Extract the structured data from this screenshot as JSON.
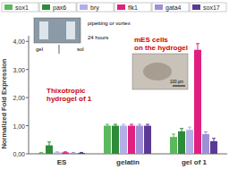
{
  "chart_data": {
    "type": "bar",
    "y_label": "Normalized Fold Expression",
    "categories": [
      "ES",
      "gelatin",
      "gel of 1"
    ],
    "series": [
      {
        "name": "sox1",
        "color": "#5cb85c",
        "values": [
          0.03,
          1.0,
          0.6
        ],
        "errors": [
          0.02,
          0.05,
          0.1
        ]
      },
      {
        "name": "pax6",
        "color": "#2e8b3a",
        "values": [
          0.3,
          1.0,
          0.8
        ],
        "errors": [
          0.12,
          0.05,
          0.1
        ]
      },
      {
        "name": "bry",
        "color": "#b3aee6",
        "values": [
          0.05,
          1.0,
          0.85
        ],
        "errors": [
          0.02,
          0.05,
          0.1
        ]
      },
      {
        "name": "flk1",
        "color": "#e0207f",
        "values": [
          0.05,
          1.0,
          3.7
        ],
        "errors": [
          0.02,
          0.05,
          0.22
        ]
      },
      {
        "name": "gata4",
        "color": "#9f8fd6",
        "values": [
          0.03,
          1.0,
          0.7
        ],
        "errors": [
          0.02,
          0.05,
          0.08
        ]
      },
      {
        "name": "sox17",
        "color": "#5b3a96",
        "values": [
          0.03,
          1.0,
          0.45
        ],
        "errors": [
          0.02,
          0.05,
          0.1
        ]
      }
    ],
    "ylim": [
      0,
      4.2
    ],
    "yticks": [
      {
        "value": 0,
        "label": "0,00"
      },
      {
        "value": 1,
        "label": "1,00"
      },
      {
        "value": 2,
        "label": "2,00"
      },
      {
        "value": 3,
        "label": "3,00"
      },
      {
        "value": 4,
        "label": "4,00"
      }
    ],
    "legend": "top",
    "annotations": [
      "gel",
      "sol",
      "pipetting or vortex",
      "24 hours",
      "Thixotropic",
      "hydrogel of 1",
      "mES cells",
      "on the hydrogel",
      "100 µm"
    ]
  }
}
